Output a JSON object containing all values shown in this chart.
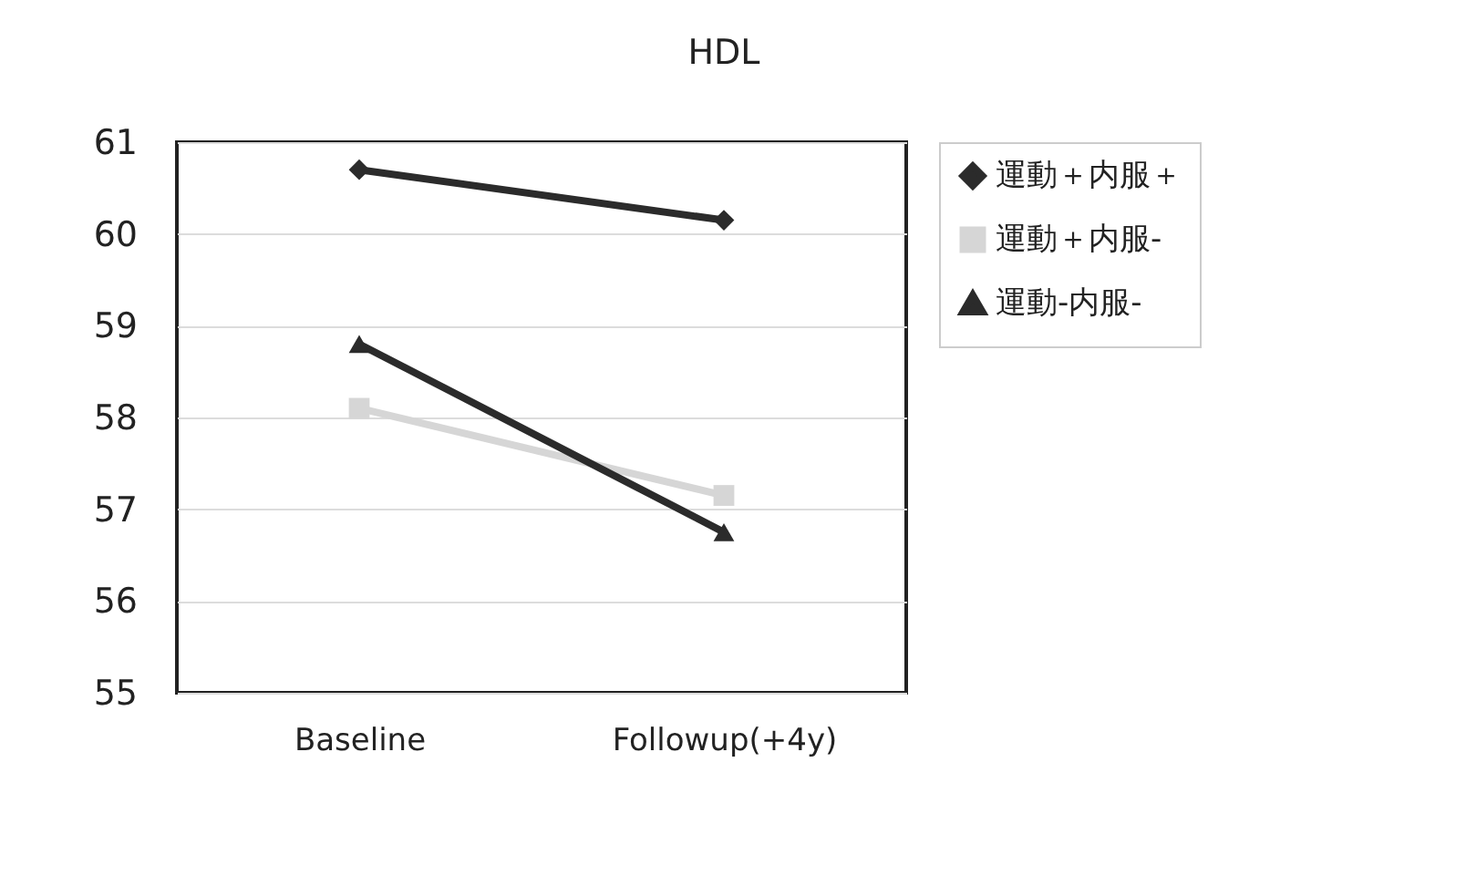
{
  "chart_data": {
    "type": "line",
    "title": "HDL",
    "categories": [
      "Baseline",
      "Followup(+4y)"
    ],
    "series": [
      {
        "name": "運動＋内服＋",
        "color": "#2b2b2b",
        "marker": "diamond",
        "values": [
          60.7,
          60.15
        ]
      },
      {
        "name": "運動＋内服-",
        "color": "#d6d6d6",
        "marker": "square",
        "values": [
          58.1,
          57.15
        ]
      },
      {
        "name": "運動-内服-",
        "color": "#2b2b2b",
        "marker": "triangle",
        "values": [
          58.8,
          56.75
        ]
      }
    ],
    "ylim": [
      55,
      61
    ],
    "yticks": [
      55,
      56,
      57,
      58,
      59,
      60,
      61
    ],
    "grid": "y",
    "legend": "right"
  }
}
